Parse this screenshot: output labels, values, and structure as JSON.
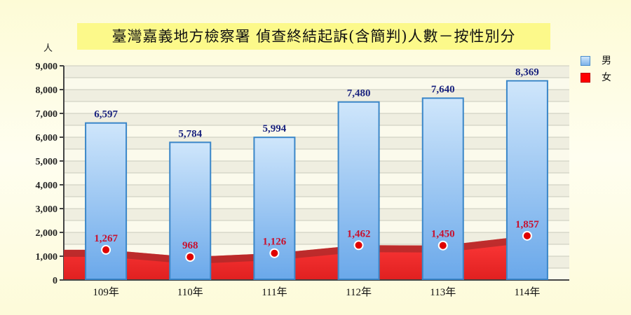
{
  "title": "臺灣嘉義地方檢察署 偵查終結起訴(含簡判)人數－按性別分",
  "unit": "人",
  "legend": [
    {
      "label": "男",
      "color": "#8ec3f0"
    },
    {
      "label": "女",
      "color": "#ff0000"
    }
  ],
  "chart_data": {
    "type": "bar",
    "title": "臺灣嘉義地方檢察署 偵查終結起訴(含簡判)人數－按性別分",
    "xlabel": "",
    "ylabel": "人",
    "ylim": [
      0,
      9000
    ],
    "yticks": [
      "0",
      "1,000",
      "2,000",
      "3,000",
      "4,000",
      "5,000",
      "6,000",
      "7,000",
      "8,000",
      "9,000"
    ],
    "grid": true,
    "legend_position": "right",
    "categories": [
      "109年",
      "110年",
      "111年",
      "112年",
      "113年",
      "114年"
    ],
    "series": [
      {
        "name": "男",
        "type": "bar",
        "values": [
          6597,
          5784,
          5994,
          7480,
          7640,
          8369
        ],
        "labels": [
          "6,597",
          "5,784",
          "5,994",
          "7,480",
          "7,640",
          "8,369"
        ]
      },
      {
        "name": "女",
        "type": "area",
        "values": [
          1267,
          968,
          1126,
          1462,
          1450,
          1857
        ],
        "labels": [
          "1,267",
          "968",
          "1,126",
          "1,462",
          "1,450",
          "1,857"
        ]
      }
    ]
  }
}
